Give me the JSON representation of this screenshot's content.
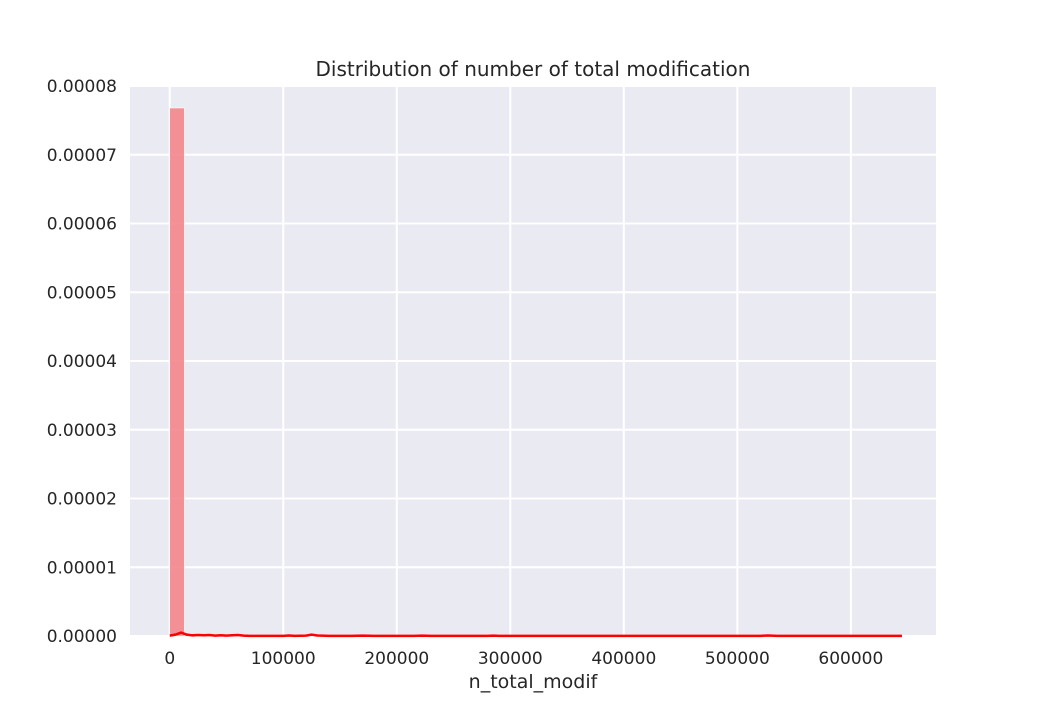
{
  "chart_data": {
    "type": "bar",
    "title": "Distribution of number of total modification",
    "xlabel": "n_total_modif",
    "ylabel": "",
    "xlim": [
      -35000,
      675000
    ],
    "ylim": [
      0,
      8e-05
    ],
    "x_ticks": [
      0,
      100000,
      200000,
      300000,
      400000,
      500000,
      600000
    ],
    "x_tick_labels": [
      "0",
      "100000",
      "200000",
      "300000",
      "400000",
      "500000",
      "600000"
    ],
    "y_ticks": [
      0,
      1e-05,
      2e-05,
      3e-05,
      4e-05,
      5e-05,
      6e-05,
      7e-05,
      8e-05
    ],
    "y_tick_labels": [
      "0.00000",
      "0.00001",
      "0.00002",
      "0.00003",
      "0.00004",
      "0.00005",
      "0.00006",
      "0.00007",
      "0.00008"
    ],
    "grid": true,
    "bars": [
      {
        "x0": 0,
        "x1": 12900,
        "value": 7.68e-05
      },
      {
        "x0": 12900,
        "x1": 25800,
        "value": 2e-07
      },
      {
        "x0": 25800,
        "x1": 38700,
        "value": 1e-07
      },
      {
        "x0": 116100,
        "x1": 129000,
        "value": 1e-07
      },
      {
        "x0": 529000,
        "x1": 541900,
        "value": 5e-08
      }
    ],
    "kde_series": {
      "name": "",
      "x": [
        0,
        5000,
        10000,
        15000,
        20000,
        25000,
        30000,
        35000,
        40000,
        45000,
        50000,
        55000,
        60000,
        65000,
        70000,
        100000,
        105000,
        110000,
        120000,
        125000,
        130000,
        140000,
        160000,
        170000,
        180000,
        215000,
        222000,
        230000,
        280000,
        285000,
        290000,
        400000,
        520000,
        527000,
        535000,
        600000,
        645000
      ],
      "y": [
        5e-08,
        2e-07,
        5e-07,
        2e-07,
        1e-07,
        1.5e-07,
        1e-07,
        1.5e-07,
        5e-08,
        1e-07,
        5e-08,
        1e-07,
        1.5e-07,
        5e-08,
        2e-08,
        2e-08,
        8e-08,
        2e-08,
        5e-08,
        2e-07,
        8e-08,
        2e-08,
        2e-08,
        6e-08,
        2e-08,
        1e-08,
        6e-08,
        1e-08,
        1e-08,
        6e-08,
        1e-08,
        1e-08,
        2e-08,
        8e-08,
        2e-08,
        1e-08,
        1e-08
      ]
    },
    "colors": {
      "background": "#eaeaf2",
      "grid": "#ffffff",
      "bar_fill": "#f4868c",
      "kde_line": "#ff0000",
      "text": "#262626"
    }
  }
}
